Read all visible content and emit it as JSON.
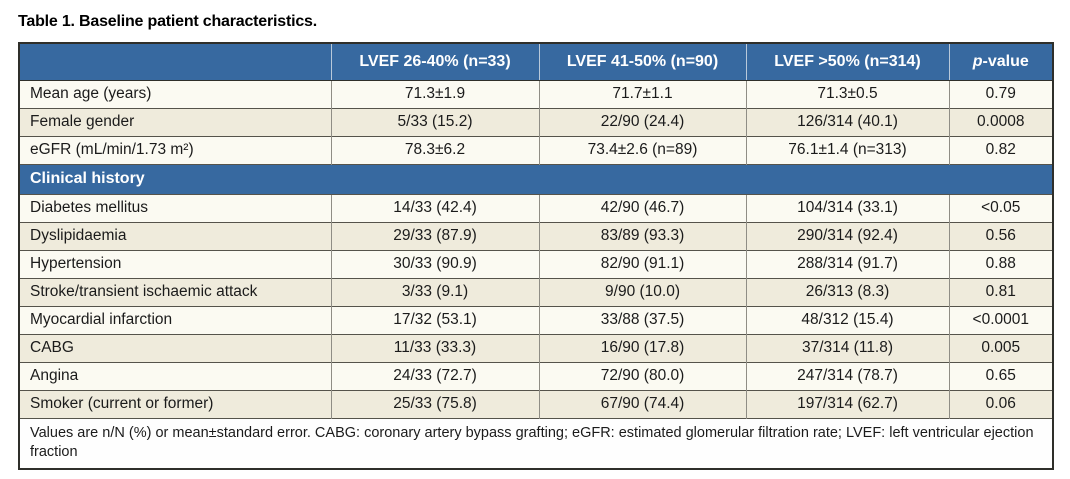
{
  "title": "Table 1. Baseline patient characteristics.",
  "colors": {
    "header_blue": "#3769a0",
    "row_beige": "#efebdc",
    "row_cream": "#fbfaf2",
    "border_dark": "#2f2f2a"
  },
  "table": {
    "columns": [
      "",
      "LVEF 26-40% (n=33)",
      "LVEF 41-50% (n=90)",
      "LVEF >50% (n=314)",
      "p-value"
    ],
    "pvalue_header": {
      "italic": "p",
      "rest": "-value"
    },
    "rows_top": [
      {
        "label": "Mean age (years)",
        "values": [
          "71.3±1.9",
          "71.7±1.1",
          "71.3±0.5",
          "0.79"
        ]
      },
      {
        "label": "Female gender",
        "values": [
          "5/33 (15.2)",
          "22/90 (24.4)",
          "126/314 (40.1)",
          "0.0008"
        ]
      },
      {
        "label": "eGFR (mL/min/1.73 m²)",
        "values": [
          "78.3±6.2",
          "73.4±2.6 (n=89)",
          "76.1±1.4 (n=313)",
          "0.82"
        ]
      }
    ],
    "section_header": "Clinical history",
    "rows_clinical": [
      {
        "label": "Diabetes mellitus",
        "values": [
          "14/33 (42.4)",
          "42/90 (46.7)",
          "104/314 (33.1)",
          "<0.05"
        ]
      },
      {
        "label": "Dyslipidaemia",
        "values": [
          "29/33 (87.9)",
          "83/89 (93.3)",
          "290/314 (92.4)",
          "0.56"
        ]
      },
      {
        "label": "Hypertension",
        "values": [
          "30/33 (90.9)",
          "82/90 (91.1)",
          "288/314 (91.7)",
          "0.88"
        ]
      },
      {
        "label": "Stroke/transient ischaemic attack",
        "values": [
          "3/33 (9.1)",
          "9/90 (10.0)",
          "26/313 (8.3)",
          "0.81"
        ]
      },
      {
        "label": "Myocardial infarction",
        "values": [
          "17/32 (53.1)",
          "33/88 (37.5)",
          "48/312 (15.4)",
          "<0.0001"
        ]
      },
      {
        "label": "CABG",
        "values": [
          "11/33 (33.3)",
          "16/90 (17.8)",
          "37/314 (11.8)",
          "0.005"
        ]
      },
      {
        "label": "Angina",
        "values": [
          "24/33 (72.7)",
          "72/90 (80.0)",
          "247/314 (78.7)",
          "0.65"
        ]
      },
      {
        "label": "Smoker (current or former)",
        "values": [
          "25/33 (75.8)",
          "67/90 (74.4)",
          "197/314 (62.7)",
          "0.06"
        ]
      }
    ],
    "footnote": "Values are n/N (%) or mean±standard error. CABG: coronary artery bypass grafting; eGFR: estimated glomerular filtration rate; LVEF: left ventricular ejection fraction"
  }
}
